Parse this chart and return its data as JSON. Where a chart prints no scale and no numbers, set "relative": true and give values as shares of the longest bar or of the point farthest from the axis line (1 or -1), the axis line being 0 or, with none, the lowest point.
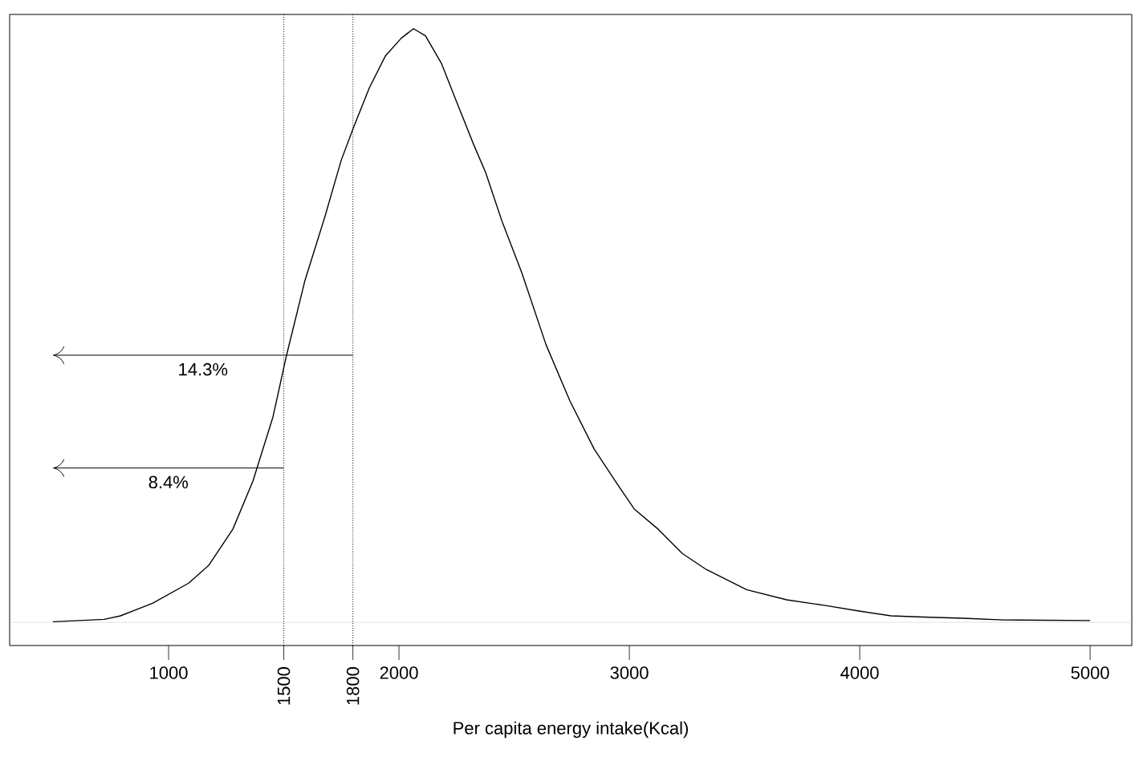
{
  "chart_data": {
    "type": "line",
    "relative": true,
    "xlabel": "Per capita energy intake(Kcal)",
    "xlim": [
      310,
      5181
    ],
    "xticks": [
      1000,
      {
        "value": 1500,
        "label": null
      },
      {
        "value": 1800,
        "label": null
      },
      2000,
      3000,
      4000,
      5000
    ],
    "x": [
      498,
      721,
      791,
      930,
      1087,
      1174,
      1279,
      1366,
      1453,
      1512,
      1592,
      1679,
      1749,
      1801,
      1871,
      1941,
      2010,
      2063,
      2115,
      2185,
      2254,
      2324,
      2376,
      2446,
      2533,
      2638,
      2742,
      2847,
      2951,
      3021,
      3125,
      3230,
      3334,
      3509,
      3683,
      3857,
      3997,
      4136,
      4275,
      4449,
      4624,
      5000
    ],
    "series": [
      {
        "color": "#000000",
        "values": [
          0.001,
          0.005,
          0.011,
          0.032,
          0.066,
          0.096,
          0.157,
          0.238,
          0.346,
          0.45,
          0.576,
          0.684,
          0.778,
          0.832,
          0.9,
          0.954,
          0.984,
          1,
          0.988,
          0.941,
          0.873,
          0.805,
          0.758,
          0.677,
          0.589,
          0.468,
          0.373,
          0.292,
          0.231,
          0.191,
          0.157,
          0.116,
          0.089,
          0.055,
          0.038,
          0.028,
          0.019,
          0.011,
          0.009,
          0.007,
          0.004,
          0.003
        ]
      }
    ],
    "ref_lines": [
      {
        "axis": "x",
        "value": 1500,
        "label": "1500",
        "line_style": "dotted",
        "color": "#000000"
      },
      {
        "axis": "x",
        "value": 1800,
        "label": "1800",
        "line_style": "dotted",
        "color": "#000000"
      }
    ],
    "annotations": [
      "14.3%",
      "8.4%"
    ],
    "grid": false,
    "marker": "none",
    "line_style": "solid"
  }
}
